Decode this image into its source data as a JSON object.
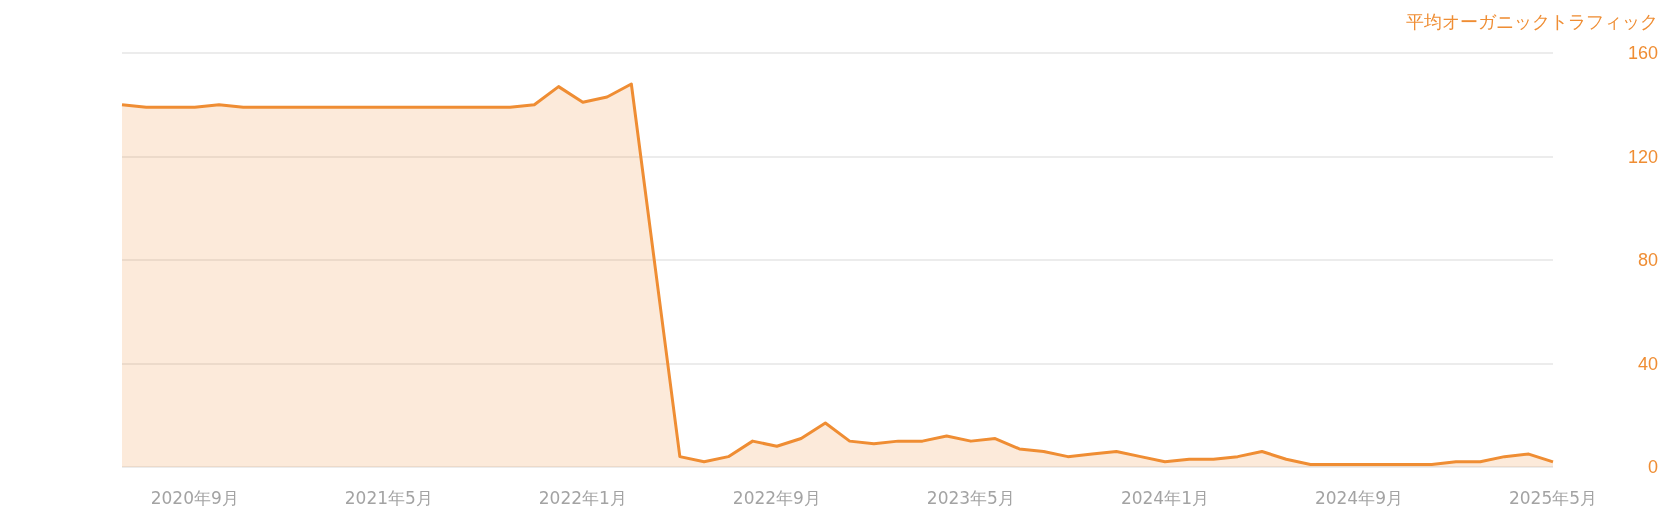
{
  "chart_data": {
    "type": "area",
    "ylabel": "平均オーガニックトラフィック",
    "categories": [
      null,
      null,
      null,
      "2020年9月",
      null,
      null,
      null,
      null,
      null,
      null,
      null,
      "2021年5月",
      null,
      null,
      null,
      null,
      null,
      null,
      null,
      "2022年1月",
      null,
      null,
      null,
      null,
      null,
      null,
      null,
      "2022年9月",
      null,
      null,
      null,
      null,
      null,
      null,
      null,
      "2023年5月",
      null,
      null,
      null,
      null,
      null,
      null,
      null,
      "2024年1月",
      null,
      null,
      null,
      null,
      null,
      null,
      null,
      "2024年9月",
      null,
      null,
      null,
      null,
      null,
      null,
      null,
      "2025年5月"
    ],
    "series": [
      {
        "color": "#ef8d33",
        "values": [
          140,
          139,
          139,
          139,
          140,
          139,
          139,
          139,
          139,
          139,
          139,
          139,
          139,
          139,
          139,
          139,
          139,
          140,
          147,
          141,
          143,
          148,
          76,
          4,
          2,
          4,
          10,
          8,
          11,
          17,
          10,
          9,
          10,
          10,
          12,
          10,
          11,
          7,
          6,
          4,
          5,
          6,
          4,
          2,
          3,
          3,
          4,
          6,
          3,
          1,
          1,
          1,
          1,
          1,
          1,
          2,
          2,
          4,
          5,
          2
        ]
      }
    ],
    "ylim": [
      0,
      160
    ],
    "yticks": [
      0,
      40,
      80,
      120,
      160
    ],
    "grid": "y",
    "marker": "none",
    "line_style": "solid"
  }
}
